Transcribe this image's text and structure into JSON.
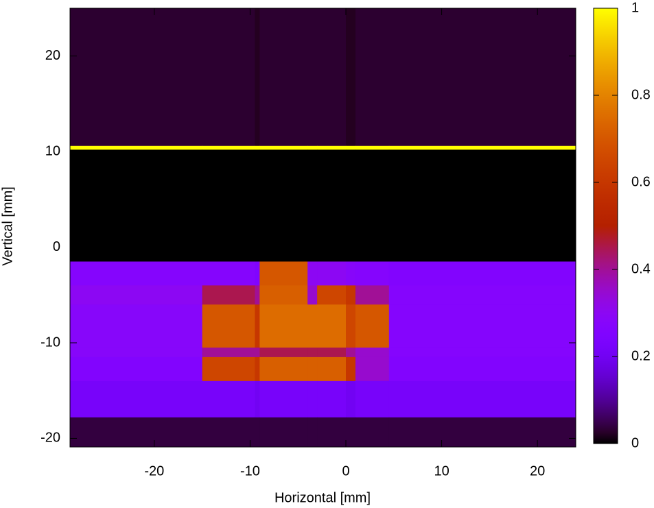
{
  "chart_data": {
    "type": "heatmap",
    "xlabel": "Horizontal [mm]",
    "ylabel": "Vertical [mm]",
    "xlim": [
      -28.8,
      24
    ],
    "ylim": [
      -20.9,
      25
    ],
    "xticks": [
      -20,
      -10,
      0,
      10,
      20
    ],
    "yticks": [
      -20,
      -10,
      0,
      10,
      20
    ],
    "x_edges": [
      -28.8,
      -15,
      -9.5,
      -9,
      -4,
      -3,
      0,
      1,
      4.5,
      24
    ],
    "y_edges": [
      25,
      10.6,
      10.2,
      -1.5,
      -4,
      -6,
      -10.5,
      -11.5,
      -14,
      -17.8,
      -20.9
    ],
    "z": [
      [
        0.03,
        0.03,
        0.02,
        0.03,
        0.03,
        0.03,
        0.02,
        0.03,
        0.03
      ],
      [
        1,
        1,
        1,
        1,
        1,
        1,
        1,
        1,
        1
      ],
      [
        0,
        0,
        0,
        0,
        0,
        0,
        0,
        0,
        0
      ],
      [
        0.27,
        0.27,
        0.25,
        0.7,
        0.3,
        0.3,
        0.28,
        0.27,
        0.26
      ],
      [
        0.3,
        0.45,
        0.4,
        0.72,
        0.35,
        0.65,
        0.6,
        0.4,
        0.27
      ],
      [
        0.28,
        0.7,
        0.6,
        0.75,
        0.75,
        0.75,
        0.65,
        0.7,
        0.27
      ],
      [
        0.28,
        0.4,
        0.4,
        0.45,
        0.45,
        0.45,
        0.4,
        0.35,
        0.27
      ],
      [
        0.26,
        0.65,
        0.6,
        0.72,
        0.72,
        0.72,
        0.6,
        0.35,
        0.26
      ],
      [
        0.22,
        0.22,
        0.2,
        0.22,
        0.22,
        0.22,
        0.2,
        0.22,
        0.22
      ],
      [
        0.04,
        0.04,
        0.04,
        0.04,
        0.04,
        0.04,
        0.04,
        0.04,
        0.04
      ]
    ],
    "colormap": "gnuplot",
    "clim": [
      0,
      1
    ],
    "cticks": [
      0,
      0.2,
      0.4,
      0.6,
      0.8,
      1
    ]
  }
}
